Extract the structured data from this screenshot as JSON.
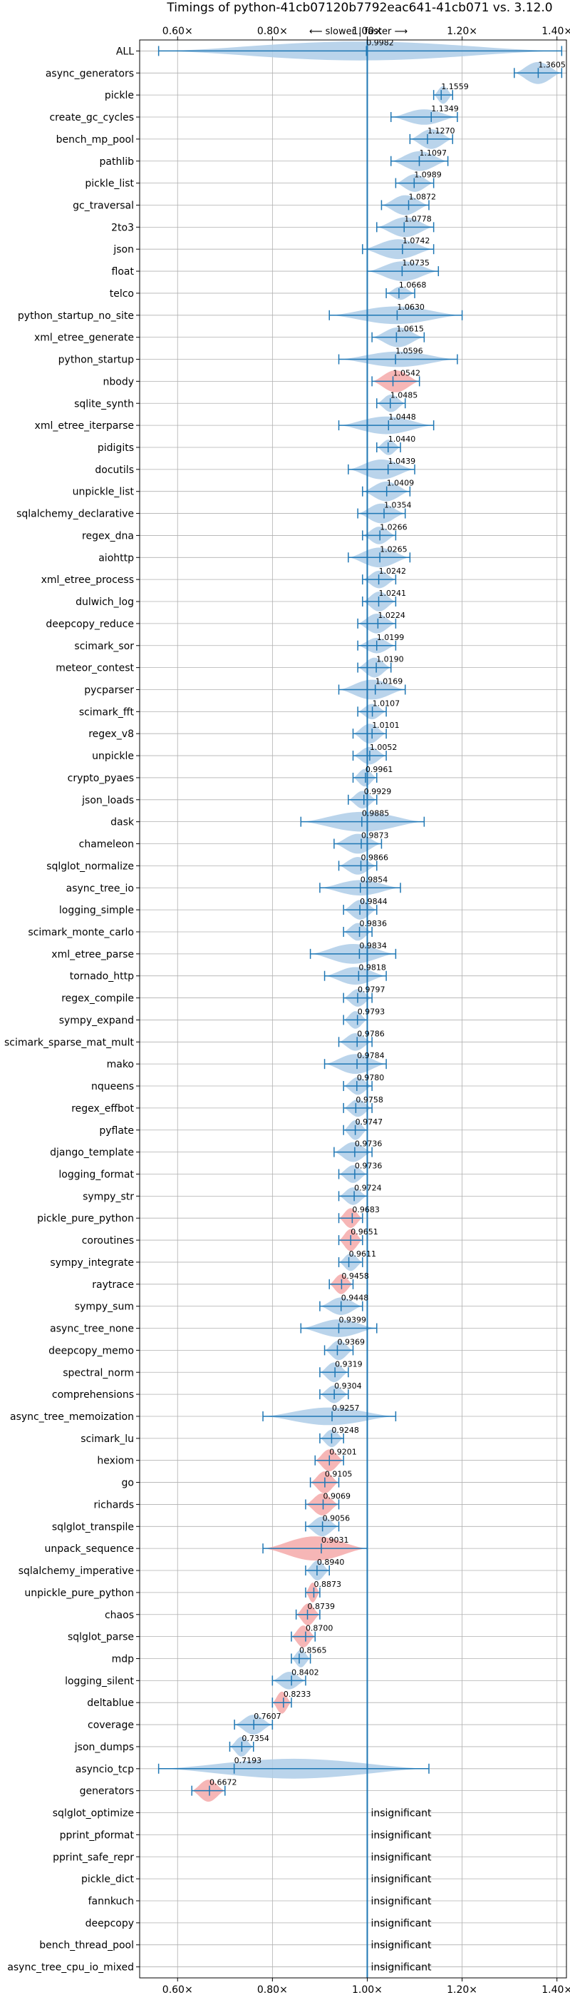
{
  "chart_data": {
    "type": "violin",
    "title": "Timings of python-41cb07120b7792eac641-41cb071 vs. 3.12.0",
    "direction_label": "⟵ slower  |  faster ⟶",
    "xlim": [
      0.52,
      1.42
    ],
    "xticks": [
      0.6,
      0.8,
      1.0,
      1.2,
      1.4
    ],
    "xtick_labels": [
      "0.60×",
      "0.80×",
      "1.00×",
      "1.20×",
      "1.40×"
    ],
    "grid": true,
    "colors": {
      "faster": "#aecde7",
      "slower": "#f4a9a9",
      "line": "#1f77b4"
    },
    "benchmarks": [
      {
        "name": "ALL",
        "value": 0.9982,
        "lo": 0.56,
        "hi": 1.41,
        "width": 0.43,
        "significant": true,
        "slower": false
      },
      {
        "name": "async_generators",
        "value": 1.3605,
        "lo": 1.31,
        "hi": 1.41,
        "width": 0.5,
        "significant": true,
        "slower": false
      },
      {
        "name": "pickle",
        "value": 1.1559,
        "lo": 1.14,
        "hi": 1.18,
        "width": 0.4,
        "significant": true,
        "slower": false
      },
      {
        "name": "create_gc_cycles",
        "value": 1.1349,
        "lo": 1.05,
        "hi": 1.19,
        "width": 0.35,
        "significant": true,
        "slower": false
      },
      {
        "name": "bench_mp_pool",
        "value": 1.127,
        "lo": 1.09,
        "hi": 1.18,
        "width": 0.45,
        "significant": true,
        "slower": false
      },
      {
        "name": "pathlib",
        "value": 1.1097,
        "lo": 1.05,
        "hi": 1.17,
        "width": 0.45,
        "significant": true,
        "slower": false
      },
      {
        "name": "pickle_list",
        "value": 1.0989,
        "lo": 1.06,
        "hi": 1.14,
        "width": 0.4,
        "significant": true,
        "slower": false
      },
      {
        "name": "gc_traversal",
        "value": 1.0872,
        "lo": 1.03,
        "hi": 1.13,
        "width": 0.45,
        "significant": true,
        "slower": false
      },
      {
        "name": "2to3",
        "value": 1.0778,
        "lo": 1.02,
        "hi": 1.14,
        "width": 0.45,
        "significant": true,
        "slower": false
      },
      {
        "name": "json",
        "value": 1.0742,
        "lo": 0.99,
        "hi": 1.14,
        "width": 0.45,
        "significant": true,
        "slower": false
      },
      {
        "name": "float",
        "value": 1.0735,
        "lo": 1.0,
        "hi": 1.15,
        "width": 0.45,
        "significant": true,
        "slower": false
      },
      {
        "name": "telco",
        "value": 1.0668,
        "lo": 1.04,
        "hi": 1.1,
        "width": 0.3,
        "significant": true,
        "slower": false
      },
      {
        "name": "python_startup_no_site",
        "value": 1.063,
        "lo": 0.92,
        "hi": 1.2,
        "width": 0.4,
        "significant": true,
        "slower": false
      },
      {
        "name": "xml_etree_generate",
        "value": 1.0615,
        "lo": 1.01,
        "hi": 1.12,
        "width": 0.45,
        "significant": true,
        "slower": false
      },
      {
        "name": "python_startup",
        "value": 1.0596,
        "lo": 0.94,
        "hi": 1.19,
        "width": 0.35,
        "significant": true,
        "slower": false
      },
      {
        "name": "nbody",
        "value": 1.0542,
        "lo": 1.01,
        "hi": 1.11,
        "width": 0.5,
        "significant": true,
        "slower": true
      },
      {
        "name": "sqlite_synth",
        "value": 1.0485,
        "lo": 1.02,
        "hi": 1.08,
        "width": 0.4,
        "significant": true,
        "slower": false
      },
      {
        "name": "xml_etree_iterparse",
        "value": 1.0448,
        "lo": 0.94,
        "hi": 1.14,
        "width": 0.4,
        "significant": true,
        "slower": false
      },
      {
        "name": "pidigits",
        "value": 1.044,
        "lo": 1.02,
        "hi": 1.07,
        "width": 0.35,
        "significant": true,
        "slower": false
      },
      {
        "name": "docutils",
        "value": 1.0439,
        "lo": 0.96,
        "hi": 1.1,
        "width": 0.45,
        "significant": true,
        "slower": false
      },
      {
        "name": "unpickle_list",
        "value": 1.0409,
        "lo": 0.99,
        "hi": 1.09,
        "width": 0.45,
        "significant": true,
        "slower": false
      },
      {
        "name": "sqlalchemy_declarative",
        "value": 1.0354,
        "lo": 0.98,
        "hi": 1.08,
        "width": 0.45,
        "significant": true,
        "slower": false
      },
      {
        "name": "regex_dna",
        "value": 1.0266,
        "lo": 0.99,
        "hi": 1.06,
        "width": 0.4,
        "significant": true,
        "slower": false
      },
      {
        "name": "aiohttp",
        "value": 1.0265,
        "lo": 0.96,
        "hi": 1.09,
        "width": 0.45,
        "significant": true,
        "slower": false
      },
      {
        "name": "xml_etree_process",
        "value": 1.0242,
        "lo": 0.99,
        "hi": 1.06,
        "width": 0.4,
        "significant": true,
        "slower": false
      },
      {
        "name": "dulwich_log",
        "value": 1.0241,
        "lo": 0.99,
        "hi": 1.06,
        "width": 0.45,
        "significant": true,
        "slower": false
      },
      {
        "name": "deepcopy_reduce",
        "value": 1.0224,
        "lo": 0.98,
        "hi": 1.06,
        "width": 0.45,
        "significant": true,
        "slower": false
      },
      {
        "name": "scimark_sor",
        "value": 1.0199,
        "lo": 0.98,
        "hi": 1.06,
        "width": 0.35,
        "significant": true,
        "slower": false
      },
      {
        "name": "meteor_contest",
        "value": 1.019,
        "lo": 0.98,
        "hi": 1.05,
        "width": 0.45,
        "significant": true,
        "slower": false
      },
      {
        "name": "pycparser",
        "value": 1.0169,
        "lo": 0.94,
        "hi": 1.08,
        "width": 0.45,
        "significant": true,
        "slower": false
      },
      {
        "name": "scimark_fft",
        "value": 1.0107,
        "lo": 0.98,
        "hi": 1.04,
        "width": 0.35,
        "significant": true,
        "slower": false
      },
      {
        "name": "regex_v8",
        "value": 1.0101,
        "lo": 0.97,
        "hi": 1.04,
        "width": 0.45,
        "significant": true,
        "slower": false
      },
      {
        "name": "unpickle",
        "value": 1.0052,
        "lo": 0.97,
        "hi": 1.04,
        "width": 0.4,
        "significant": true,
        "slower": false
      },
      {
        "name": "crypto_pyaes",
        "value": 0.9961,
        "lo": 0.97,
        "hi": 1.02,
        "width": 0.4,
        "significant": true,
        "slower": false
      },
      {
        "name": "json_loads",
        "value": 0.9929,
        "lo": 0.96,
        "hi": 1.02,
        "width": 0.4,
        "significant": true,
        "slower": false
      },
      {
        "name": "dask",
        "value": 0.9885,
        "lo": 0.86,
        "hi": 1.12,
        "width": 0.45,
        "significant": true,
        "slower": false
      },
      {
        "name": "chameleon",
        "value": 0.9873,
        "lo": 0.93,
        "hi": 1.03,
        "width": 0.45,
        "significant": true,
        "slower": false
      },
      {
        "name": "sqlglot_normalize",
        "value": 0.9866,
        "lo": 0.94,
        "hi": 1.02,
        "width": 0.4,
        "significant": true,
        "slower": false
      },
      {
        "name": "async_tree_io",
        "value": 0.9854,
        "lo": 0.9,
        "hi": 1.07,
        "width": 0.35,
        "significant": true,
        "slower": false
      },
      {
        "name": "logging_simple",
        "value": 0.9844,
        "lo": 0.95,
        "hi": 1.02,
        "width": 0.45,
        "significant": true,
        "slower": false
      },
      {
        "name": "scimark_monte_carlo",
        "value": 0.9836,
        "lo": 0.95,
        "hi": 1.01,
        "width": 0.4,
        "significant": true,
        "slower": false
      },
      {
        "name": "xml_etree_parse",
        "value": 0.9834,
        "lo": 0.88,
        "hi": 1.06,
        "width": 0.45,
        "significant": true,
        "slower": false
      },
      {
        "name": "tornado_http",
        "value": 0.9818,
        "lo": 0.91,
        "hi": 1.04,
        "width": 0.4,
        "significant": true,
        "slower": false
      },
      {
        "name": "regex_compile",
        "value": 0.9797,
        "lo": 0.95,
        "hi": 1.01,
        "width": 0.4,
        "significant": true,
        "slower": false
      },
      {
        "name": "sympy_expand",
        "value": 0.9793,
        "lo": 0.95,
        "hi": 1.0,
        "width": 0.4,
        "significant": true,
        "slower": false
      },
      {
        "name": "scimark_sparse_mat_mult",
        "value": 0.9786,
        "lo": 0.94,
        "hi": 1.01,
        "width": 0.4,
        "significant": true,
        "slower": false
      },
      {
        "name": "mako",
        "value": 0.9784,
        "lo": 0.91,
        "hi": 1.04,
        "width": 0.45,
        "significant": true,
        "slower": false
      },
      {
        "name": "nqueens",
        "value": 0.978,
        "lo": 0.95,
        "hi": 1.01,
        "width": 0.4,
        "significant": true,
        "slower": false
      },
      {
        "name": "regex_effbot",
        "value": 0.9758,
        "lo": 0.95,
        "hi": 1.01,
        "width": 0.4,
        "significant": true,
        "slower": false
      },
      {
        "name": "pyflate",
        "value": 0.9747,
        "lo": 0.95,
        "hi": 1.0,
        "width": 0.45,
        "significant": true,
        "slower": false
      },
      {
        "name": "django_template",
        "value": 0.9736,
        "lo": 0.93,
        "hi": 1.01,
        "width": 0.45,
        "significant": true,
        "slower": false
      },
      {
        "name": "logging_format",
        "value": 0.9736,
        "lo": 0.94,
        "hi": 1.0,
        "width": 0.4,
        "significant": true,
        "slower": false
      },
      {
        "name": "sympy_str",
        "value": 0.9724,
        "lo": 0.94,
        "hi": 1.0,
        "width": 0.4,
        "significant": true,
        "slower": false
      },
      {
        "name": "pickle_pure_python",
        "value": 0.9683,
        "lo": 0.94,
        "hi": 0.99,
        "width": 0.45,
        "significant": true,
        "slower": true
      },
      {
        "name": "coroutines",
        "value": 0.9651,
        "lo": 0.94,
        "hi": 0.99,
        "width": 0.5,
        "significant": true,
        "slower": true
      },
      {
        "name": "sympy_integrate",
        "value": 0.9611,
        "lo": 0.94,
        "hi": 0.99,
        "width": 0.4,
        "significant": true,
        "slower": false
      },
      {
        "name": "raytrace",
        "value": 0.9458,
        "lo": 0.92,
        "hi": 0.97,
        "width": 0.45,
        "significant": true,
        "slower": true
      },
      {
        "name": "sympy_sum",
        "value": 0.9448,
        "lo": 0.9,
        "hi": 0.99,
        "width": 0.4,
        "significant": true,
        "slower": false
      },
      {
        "name": "async_tree_none",
        "value": 0.9399,
        "lo": 0.86,
        "hi": 1.02,
        "width": 0.4,
        "significant": true,
        "slower": false
      },
      {
        "name": "deepcopy_memo",
        "value": 0.9369,
        "lo": 0.91,
        "hi": 0.97,
        "width": 0.45,
        "significant": true,
        "slower": false
      },
      {
        "name": "spectral_norm",
        "value": 0.9319,
        "lo": 0.9,
        "hi": 0.96,
        "width": 0.45,
        "significant": true,
        "slower": false
      },
      {
        "name": "comprehensions",
        "value": 0.9304,
        "lo": 0.9,
        "hi": 0.96,
        "width": 0.4,
        "significant": true,
        "slower": false
      },
      {
        "name": "async_tree_memoization",
        "value": 0.9257,
        "lo": 0.78,
        "hi": 1.06,
        "width": 0.4,
        "significant": true,
        "slower": false
      },
      {
        "name": "scimark_lu",
        "value": 0.9248,
        "lo": 0.9,
        "hi": 0.95,
        "width": 0.4,
        "significant": true,
        "slower": false
      },
      {
        "name": "hexiom",
        "value": 0.9201,
        "lo": 0.89,
        "hi": 0.95,
        "width": 0.5,
        "significant": true,
        "slower": true
      },
      {
        "name": "go",
        "value": 0.9105,
        "lo": 0.88,
        "hi": 0.94,
        "width": 0.5,
        "significant": true,
        "slower": true
      },
      {
        "name": "richards",
        "value": 0.9069,
        "lo": 0.87,
        "hi": 0.94,
        "width": 0.5,
        "significant": true,
        "slower": true
      },
      {
        "name": "sqlglot_transpile",
        "value": 0.9056,
        "lo": 0.87,
        "hi": 0.94,
        "width": 0.45,
        "significant": true,
        "slower": false
      },
      {
        "name": "unpack_sequence",
        "value": 0.9031,
        "lo": 0.78,
        "hi": 1.0,
        "width": 0.55,
        "significant": true,
        "slower": true
      },
      {
        "name": "sqlalchemy_imperative",
        "value": 0.894,
        "lo": 0.87,
        "hi": 0.92,
        "width": 0.45,
        "significant": true,
        "slower": false
      },
      {
        "name": "unpickle_pure_python",
        "value": 0.8873,
        "lo": 0.87,
        "hi": 0.9,
        "width": 0.45,
        "significant": true,
        "slower": true
      },
      {
        "name": "chaos",
        "value": 0.8739,
        "lo": 0.85,
        "hi": 0.9,
        "width": 0.5,
        "significant": true,
        "slower": true
      },
      {
        "name": "sqlglot_parse",
        "value": 0.87,
        "lo": 0.84,
        "hi": 0.89,
        "width": 0.5,
        "significant": true,
        "slower": true
      },
      {
        "name": "mdp",
        "value": 0.8565,
        "lo": 0.84,
        "hi": 0.88,
        "width": 0.4,
        "significant": true,
        "slower": false
      },
      {
        "name": "logging_silent",
        "value": 0.8402,
        "lo": 0.8,
        "hi": 0.87,
        "width": 0.4,
        "significant": true,
        "slower": false
      },
      {
        "name": "deltablue",
        "value": 0.8233,
        "lo": 0.8,
        "hi": 0.84,
        "width": 0.5,
        "significant": true,
        "slower": true
      },
      {
        "name": "coverage",
        "value": 0.7607,
        "lo": 0.72,
        "hi": 0.8,
        "width": 0.45,
        "significant": true,
        "slower": false
      },
      {
        "name": "json_dumps",
        "value": 0.7354,
        "lo": 0.71,
        "hi": 0.76,
        "width": 0.45,
        "significant": true,
        "slower": false
      },
      {
        "name": "asyncio_tcp",
        "value": 0.7193,
        "lo": 0.56,
        "hi": 1.13,
        "width": 0.45,
        "significant": true,
        "slower": false
      },
      {
        "name": "generators",
        "value": 0.6672,
        "lo": 0.63,
        "hi": 0.7,
        "width": 0.5,
        "significant": true,
        "slower": true
      },
      {
        "name": "sqlglot_optimize",
        "value": null,
        "significant": false,
        "note": "insignificant"
      },
      {
        "name": "pprint_pformat",
        "value": null,
        "significant": false,
        "note": "insignificant"
      },
      {
        "name": "pprint_safe_repr",
        "value": null,
        "significant": false,
        "note": "insignificant"
      },
      {
        "name": "pickle_dict",
        "value": null,
        "significant": false,
        "note": "insignificant"
      },
      {
        "name": "fannkuch",
        "value": null,
        "significant": false,
        "note": "insignificant"
      },
      {
        "name": "deepcopy",
        "value": null,
        "significant": false,
        "note": "insignificant"
      },
      {
        "name": "bench_thread_pool",
        "value": null,
        "significant": false,
        "note": "insignificant"
      },
      {
        "name": "async_tree_cpu_io_mixed",
        "value": null,
        "significant": false,
        "note": "insignificant"
      }
    ]
  }
}
